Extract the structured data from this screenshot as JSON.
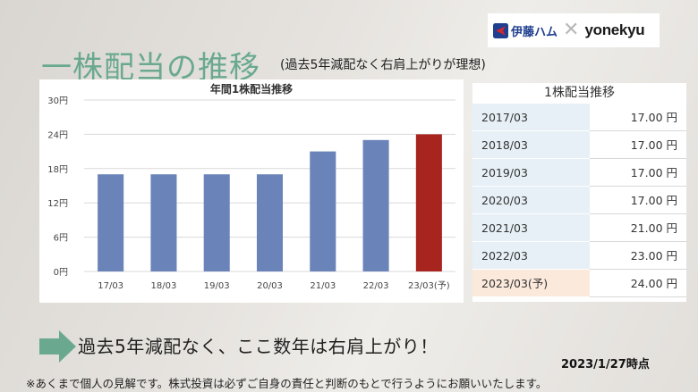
{
  "logos": {
    "itoham": "伊藤ハム",
    "cross": "✕",
    "yonekyu": "yonekyu",
    "itoham_color": "#1f3f8f",
    "itoham_mark_color": "#d7262d"
  },
  "header": {
    "title": "一株配当の推移",
    "subtitle": "(過去5年減配なく右肩上がりが理想)"
  },
  "chart_data": {
    "type": "bar",
    "title": "年間1株配当推移",
    "categories": [
      "17/03",
      "18/03",
      "19/03",
      "20/03",
      "21/03",
      "22/03",
      "23/03(予)"
    ],
    "values": [
      17,
      17,
      17,
      17,
      21,
      23,
      24
    ],
    "ylim": [
      0,
      30
    ],
    "yticks": [
      0,
      6,
      12,
      18,
      24,
      30
    ],
    "ytick_labels": [
      "0円",
      "6円",
      "12円",
      "18円",
      "24円",
      "30円"
    ],
    "xlabel": "",
    "ylabel": "",
    "grid": true,
    "bar_color": "#6a83b8",
    "highlight_color": "#a8241f",
    "highlight_index": 6
  },
  "table": {
    "title": "1株配当推移",
    "rows": [
      {
        "label": "2017/03",
        "value": "17.00 円"
      },
      {
        "label": "2018/03",
        "value": "17.00 円"
      },
      {
        "label": "2019/03",
        "value": "17.00 円"
      },
      {
        "label": "2020/03",
        "value": "17.00 円"
      },
      {
        "label": "2021/03",
        "value": "21.00 円"
      },
      {
        "label": "2022/03",
        "value": "23.00 円"
      },
      {
        "label": "2023/03(予)",
        "value": "24.00 円"
      }
    ]
  },
  "callout": {
    "arrow_color": "#6aa98f",
    "text": "過去5年減配なく、ここ数年は右肩上がり！"
  },
  "asof": "2023/1/27時点",
  "disclaimer": "※あくまで個人の見解です。株式投資は必ずご自身の責任と判断のもとで行うようにお願いいたします。"
}
